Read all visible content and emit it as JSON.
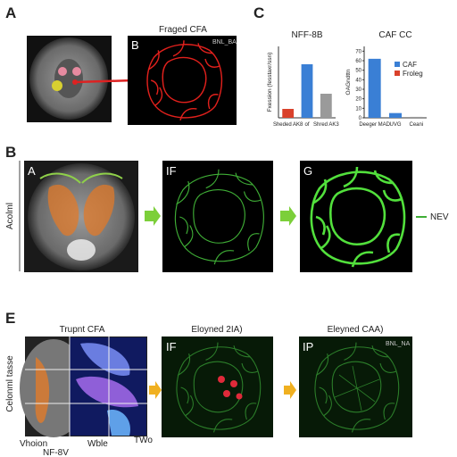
{
  "panel_labels": [
    "A",
    "C",
    "B",
    "E"
  ],
  "panel_a": {
    "title": "Fraged CFA",
    "inset_label": "B",
    "inset_tag": "BNL_BA"
  },
  "chart_data": [
    {
      "type": "bar",
      "title": "NFF-8B",
      "y_label": "Fxession (fesstaxr/ssn)",
      "categories": [
        "Sheded AK8",
        "of",
        "Shred AK3"
      ],
      "values": [
        10,
        60,
        27
      ],
      "colors": [
        "#d9412b",
        "#3a7fd5",
        "#9a9a9a"
      ],
      "ylim": [
        0,
        80
      ]
    },
    {
      "type": "bar",
      "title": "CAF CC",
      "y_label": "OAGndttn",
      "categories": [
        "Deeger MAD",
        "UVG",
        "Ceani"
      ],
      "values": [
        62,
        5,
        1
      ],
      "colors": [
        "#3a7fd5",
        "#3a7fd5",
        "#9a9a9a"
      ],
      "ylim": [
        0,
        75
      ],
      "yticks": [
        0,
        10,
        20,
        30,
        40,
        50,
        60,
        70
      ],
      "legend": [
        {
          "name": "CAF",
          "color": "#3a7fd5"
        },
        {
          "name": "Froleg",
          "color": "#d9412b"
        }
      ]
    }
  ],
  "panel_b": {
    "side_label": "Acolml",
    "image_labels": [
      "A",
      "IF",
      "G"
    ],
    "marker_label": "NEV"
  },
  "panel_e": {
    "titles": [
      "Trupnt CFA",
      "Eloyned 2IA)",
      "Eleyned CAA)"
    ],
    "side_label": "Celonml tasse",
    "image_labels": [
      "IF",
      "IP"
    ],
    "inset_tag": "BNL_NA",
    "bottom_labels": [
      "Vhoion",
      "Wble",
      "TWo",
      "NF-8V"
    ]
  }
}
